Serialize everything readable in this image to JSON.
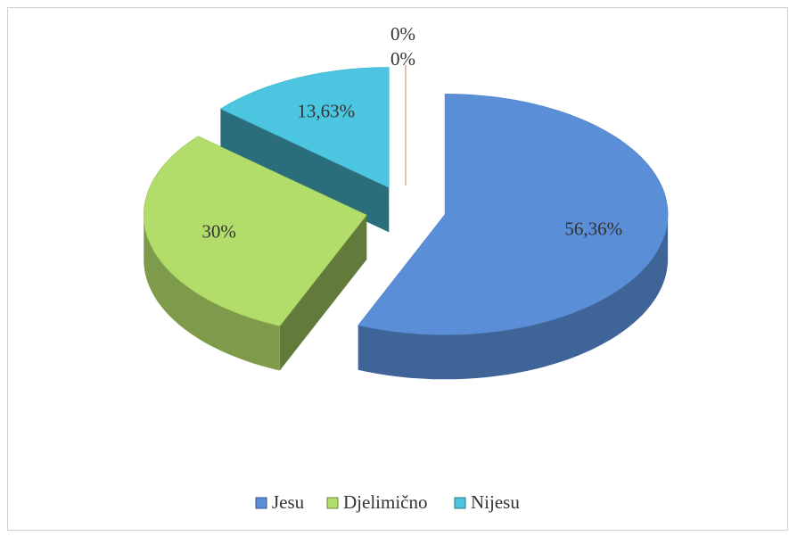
{
  "chart_data": {
    "type": "pie",
    "categories": [
      "Jesu",
      "Djelimično",
      "Nijesu",
      null,
      null
    ],
    "values": [
      56.36,
      30,
      13.63,
      0,
      0
    ],
    "value_labels": [
      "56,36%",
      "30%",
      "13,63%",
      "0%",
      "0%"
    ],
    "colors": [
      "#5a8fd8",
      "#b2dd6a",
      "#4cc6e0",
      "#8064a2",
      "#f79646"
    ],
    "legend": "bottom",
    "three_d": true,
    "exploded": true
  }
}
